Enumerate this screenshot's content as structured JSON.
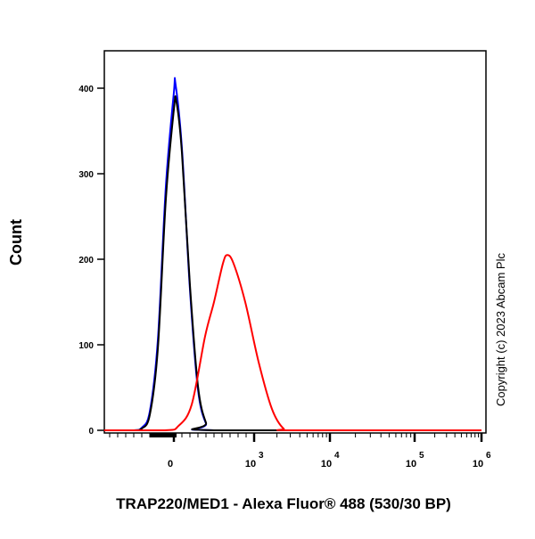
{
  "chart_data": {
    "type": "line",
    "title": "",
    "xlabel": "TRAP220/MED1 - Alexa Fluor® 488 (530/30 BP)",
    "ylabel": "Count",
    "x_scale": "biexponential",
    "xlim": [
      -870,
      1000000
    ],
    "ylim": [
      0,
      440
    ],
    "x_ticks": [
      {
        "value": 0,
        "label": "0"
      },
      {
        "value": 1000,
        "label": "10",
        "exp": "3"
      },
      {
        "value": 10000,
        "label": "10",
        "exp": "4"
      },
      {
        "value": 100000,
        "label": "10",
        "exp": "5"
      },
      {
        "value": 1000000,
        "label": "10",
        "exp": "6"
      }
    ],
    "y_ticks": [
      0,
      100,
      200,
      300,
      400
    ],
    "grid": false,
    "series": [
      {
        "color": "#0000ff",
        "points": [
          [
            -870,
            0
          ],
          [
            -500,
            0
          ],
          [
            -400,
            3
          ],
          [
            -300,
            22
          ],
          [
            -200,
            105
          ],
          [
            -100,
            285
          ],
          [
            0,
            395
          ],
          [
            20,
            405
          ],
          [
            100,
            330
          ],
          [
            200,
            165
          ],
          [
            300,
            48
          ],
          [
            400,
            8
          ],
          [
            500,
            0
          ],
          [
            1000000,
            0
          ]
        ]
      },
      {
        "color": "#000000",
        "points": [
          [
            -870,
            0
          ],
          [
            -500,
            0
          ],
          [
            -400,
            2
          ],
          [
            -300,
            18
          ],
          [
            -200,
            95
          ],
          [
            -100,
            270
          ],
          [
            0,
            375
          ],
          [
            30,
            385
          ],
          [
            100,
            325
          ],
          [
            200,
            170
          ],
          [
            300,
            52
          ],
          [
            400,
            9
          ],
          [
            500,
            0
          ],
          [
            1000000,
            0
          ]
        ]
      },
      {
        "color": "#ff0000",
        "points": [
          [
            -870,
            0
          ],
          [
            -111,
            0
          ],
          [
            56,
            5
          ],
          [
            222,
            30
          ],
          [
            389,
            110
          ],
          [
            500,
            150
          ],
          [
            611,
            195
          ],
          [
            667,
            205
          ],
          [
            744,
            195
          ],
          [
            889,
            150
          ],
          [
            1145,
            80
          ],
          [
            1718,
            25
          ],
          [
            2444,
            2
          ],
          [
            3385,
            0
          ],
          [
            1000000,
            0
          ]
        ]
      }
    ]
  },
  "copyright": "Copyright (c) 2023 Abcam Plc"
}
